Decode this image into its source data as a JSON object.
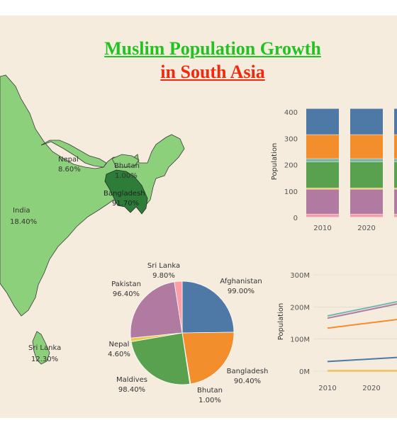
{
  "title_line1": "Muslim Population Growth",
  "title_line2": "in South Asia",
  "colors": {
    "background": "#f5ecdd",
    "map_light": "#8dd07c",
    "map_dark": "#2d7d39",
    "title1": "#21c321",
    "title2": "#f02a0f"
  },
  "map": {
    "labels": [
      {
        "name": "Nepal",
        "value": "8.60%"
      },
      {
        "name": "Bhutan",
        "value": "1.00%"
      },
      {
        "name": "Bangladesh",
        "value": "91.70%"
      },
      {
        "name": "India",
        "value": "18.40%"
      },
      {
        "name": "Sri Lanka",
        "value": "12.30%"
      }
    ]
  },
  "chart_data": [
    {
      "type": "bar",
      "stacked": true,
      "categories": [
        "2010",
        "2020",
        ""
      ],
      "ylabel": "Population",
      "ylim": [
        0,
        400
      ],
      "yticks": [
        "0",
        "100",
        "200",
        "300",
        "400"
      ],
      "series": [
        {
          "color": "#f19fb0",
          "values": [
            12,
            12,
            12
          ]
        },
        {
          "color": "#b07aa1",
          "values": [
            94,
            94,
            94
          ]
        },
        {
          "color": "#edc948",
          "values": [
            5,
            5,
            5
          ]
        },
        {
          "color": "#59a14f",
          "values": [
            99,
            99,
            99
          ]
        },
        {
          "color": "#76b7b2",
          "values": [
            12,
            12,
            12
          ]
        },
        {
          "color": "#f28e2b",
          "values": [
            91,
            91,
            91
          ]
        },
        {
          "color": "#4e79a7",
          "values": [
            99,
            99,
            99
          ]
        }
      ]
    },
    {
      "type": "pie",
      "slices": [
        {
          "label": "Afghanistan",
          "value": 99.0,
          "display": "99.00%",
          "color": "#4e79a7"
        },
        {
          "label": "Bangladesh",
          "value": 90.4,
          "display": "90.40%",
          "color": "#f28e2b"
        },
        {
          "label": "Bhutan",
          "value": 1.0,
          "display": "1.00%",
          "color": "#76b7b2"
        },
        {
          "label": "Maldives",
          "value": 98.4,
          "display": "98.40%",
          "color": "#59a14f"
        },
        {
          "label": "Nepal",
          "value": 4.6,
          "display": "4.60%",
          "color": "#edc948"
        },
        {
          "label": "Pakistan",
          "value": 96.4,
          "display": "96.40%",
          "color": "#b07aa1"
        },
        {
          "label": "Sri Lanka",
          "value": 9.8,
          "display": "9.80%",
          "color": "#ff9da7"
        }
      ]
    },
    {
      "type": "line",
      "x": [
        "2010",
        "2020"
      ],
      "ylabel": "Population",
      "ylim": [
        0,
        300
      ],
      "yticks": [
        "0M",
        "100M",
        "200M",
        "300M"
      ],
      "series": [
        {
          "color": "#76b7b2",
          "values": [
            172,
            200
          ]
        },
        {
          "color": "#b07aa1",
          "values": [
            165,
            193
          ]
        },
        {
          "color": "#f28e2b",
          "values": [
            134,
            151
          ]
        },
        {
          "color": "#4e79a7",
          "values": [
            30,
            38
          ]
        },
        {
          "color": "#e15759",
          "values": [
            1,
            1
          ]
        },
        {
          "color": "#edc948",
          "values": [
            0.5,
            0.6
          ]
        }
      ]
    }
  ]
}
